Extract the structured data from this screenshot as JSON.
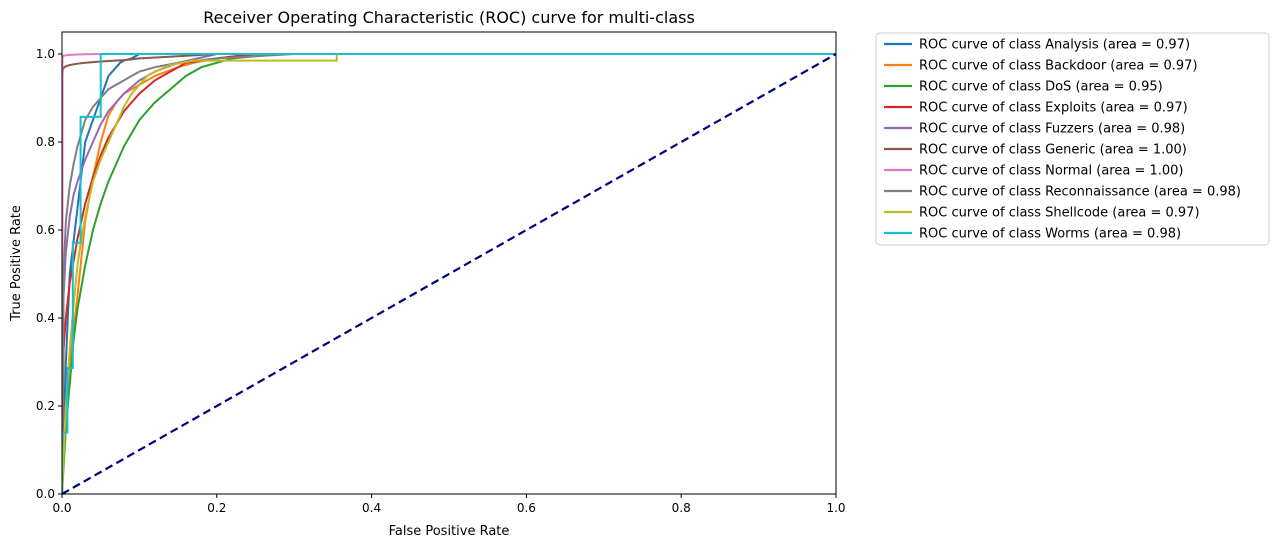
{
  "chart_data": {
    "type": "line",
    "title": "Receiver Operating Characteristic (ROC) curve for multi-class",
    "xlabel": "False Positive Rate",
    "ylabel": "True Positive Rate",
    "xlim": [
      0.0,
      1.0
    ],
    "ylim": [
      0.0,
      1.05
    ],
    "xticks": [
      "0.0",
      "0.2",
      "0.4",
      "0.6",
      "0.8",
      "1.0"
    ],
    "yticks": [
      "0.0",
      "0.2",
      "0.4",
      "0.6",
      "0.8",
      "1.0"
    ],
    "grid": false,
    "legend_position": "outside-top-right",
    "series": [
      {
        "name": "ROC curve of class Analysis (area = 0.97)",
        "color": "#1f77b4",
        "x": [
          0,
          0.005,
          0.01,
          0.02,
          0.03,
          0.05,
          0.06,
          0.07,
          0.075,
          0.08,
          0.09,
          0.1,
          1.0
        ],
        "y": [
          0,
          0.3,
          0.5,
          0.65,
          0.8,
          0.9,
          0.95,
          0.97,
          0.98,
          0.985,
          0.99,
          1.0,
          1.0
        ]
      },
      {
        "name": "ROC curve of class Backdoor (area = 0.97)",
        "color": "#ff7f0e",
        "x": [
          0,
          0.005,
          0.01,
          0.02,
          0.03,
          0.04,
          0.05,
          0.06,
          0.07,
          0.08,
          0.1,
          0.12,
          0.15,
          0.17,
          0.2,
          0.25,
          1.0
        ],
        "y": [
          0,
          0.2,
          0.3,
          0.45,
          0.62,
          0.72,
          0.8,
          0.86,
          0.89,
          0.91,
          0.93,
          0.95,
          0.97,
          0.98,
          0.99,
          1.0,
          1.0
        ]
      },
      {
        "name": "ROC curve of class DoS (area = 0.95)",
        "color": "#2ca02c",
        "x": [
          0,
          0.005,
          0.01,
          0.015,
          0.02,
          0.03,
          0.04,
          0.05,
          0.06,
          0.07,
          0.08,
          0.09,
          0.1,
          0.12,
          0.14,
          0.16,
          0.18,
          0.2,
          0.22,
          0.25,
          0.28,
          1.0
        ],
        "y": [
          0,
          0.15,
          0.25,
          0.35,
          0.42,
          0.52,
          0.6,
          0.66,
          0.71,
          0.75,
          0.79,
          0.82,
          0.85,
          0.89,
          0.92,
          0.95,
          0.97,
          0.98,
          0.99,
          0.995,
          1.0,
          1.0
        ]
      },
      {
        "name": "ROC curve of class Exploits (area = 0.97)",
        "color": "#d62728",
        "x": [
          0,
          0.002,
          0.005,
          0.01,
          0.02,
          0.03,
          0.04,
          0.05,
          0.06,
          0.07,
          0.08,
          0.09,
          0.1,
          0.12,
          0.14,
          0.16,
          0.2,
          0.25,
          1.0
        ],
        "y": [
          0,
          0.33,
          0.4,
          0.48,
          0.58,
          0.66,
          0.72,
          0.77,
          0.81,
          0.84,
          0.87,
          0.89,
          0.91,
          0.94,
          0.96,
          0.98,
          0.99,
          1.0,
          1.0
        ]
      },
      {
        "name": "ROC curve of class Fuzzers (area = 0.98)",
        "color": "#9467bd",
        "x": [
          0,
          0.002,
          0.005,
          0.01,
          0.015,
          0.02,
          0.03,
          0.04,
          0.05,
          0.06,
          0.07,
          0.08,
          0.1,
          0.12,
          0.15,
          0.2,
          1.0
        ],
        "y": [
          0,
          0.45,
          0.55,
          0.63,
          0.68,
          0.71,
          0.76,
          0.8,
          0.84,
          0.87,
          0.89,
          0.91,
          0.94,
          0.96,
          0.98,
          1.0,
          1.0
        ]
      },
      {
        "name": "ROC curve of class Generic (area = 1.00)",
        "color": "#8c564b",
        "x": [
          0,
          0.0005,
          0.001,
          0.003,
          0.005,
          0.01,
          0.02,
          0.03,
          0.05,
          0.08,
          0.1,
          0.15,
          0.2,
          1.0
        ],
        "y": [
          0,
          0.95,
          0.965,
          0.97,
          0.972,
          0.975,
          0.978,
          0.98,
          0.983,
          0.986,
          0.99,
          0.995,
          1.0,
          1.0
        ]
      },
      {
        "name": "ROC curve of class Normal (area = 1.00)",
        "color": "#e377c2",
        "x": [
          0,
          0.0005,
          0.002,
          0.005,
          0.01,
          0.02,
          0.03,
          0.05,
          1.0
        ],
        "y": [
          0,
          0.995,
          0.996,
          0.997,
          0.998,
          0.999,
          0.9995,
          1.0,
          1.0
        ]
      },
      {
        "name": "ROC curve of class Reconnaissance (area = 0.98)",
        "color": "#7f7f7f",
        "x": [
          0,
          0.002,
          0.005,
          0.01,
          0.015,
          0.02,
          0.025,
          0.03,
          0.04,
          0.05,
          0.06,
          0.07,
          0.08,
          0.1,
          0.12,
          0.15,
          0.2,
          0.25,
          0.3,
          1.0
        ],
        "y": [
          0,
          0.5,
          0.62,
          0.7,
          0.75,
          0.79,
          0.82,
          0.85,
          0.88,
          0.9,
          0.92,
          0.93,
          0.94,
          0.96,
          0.97,
          0.98,
          0.99,
          0.995,
          1.0,
          1.0
        ]
      },
      {
        "name": "ROC curve of class Shellcode (area = 0.97)",
        "color": "#bcbd22",
        "x": [
          0,
          0.005,
          0.01,
          0.015,
          0.02,
          0.025,
          0.03,
          0.035,
          0.04,
          0.05,
          0.06,
          0.07,
          0.08,
          0.09,
          0.1,
          0.11,
          0.12,
          0.14,
          0.17,
          0.355,
          0.355,
          1.0
        ],
        "y": [
          0,
          0.2,
          0.33,
          0.43,
          0.52,
          0.58,
          0.63,
          0.67,
          0.71,
          0.76,
          0.8,
          0.84,
          0.88,
          0.91,
          0.93,
          0.95,
          0.96,
          0.975,
          0.985,
          0.985,
          1.0,
          1.0
        ]
      },
      {
        "name": "ROC curve of class Worms (area = 0.98)",
        "color": "#17becf",
        "x": [
          0,
          0,
          0.007,
          0.007,
          0.014,
          0.014,
          0.024,
          0.024,
          0.05,
          0.05,
          1.0
        ],
        "y": [
          0,
          0.14,
          0.14,
          0.286,
          0.286,
          0.571,
          0.571,
          0.857,
          0.857,
          1.0,
          1.0
        ]
      }
    ],
    "reference_line": {
      "x": [
        0,
        1
      ],
      "y": [
        0,
        1
      ],
      "color": "#000080",
      "style": "dashed"
    }
  }
}
